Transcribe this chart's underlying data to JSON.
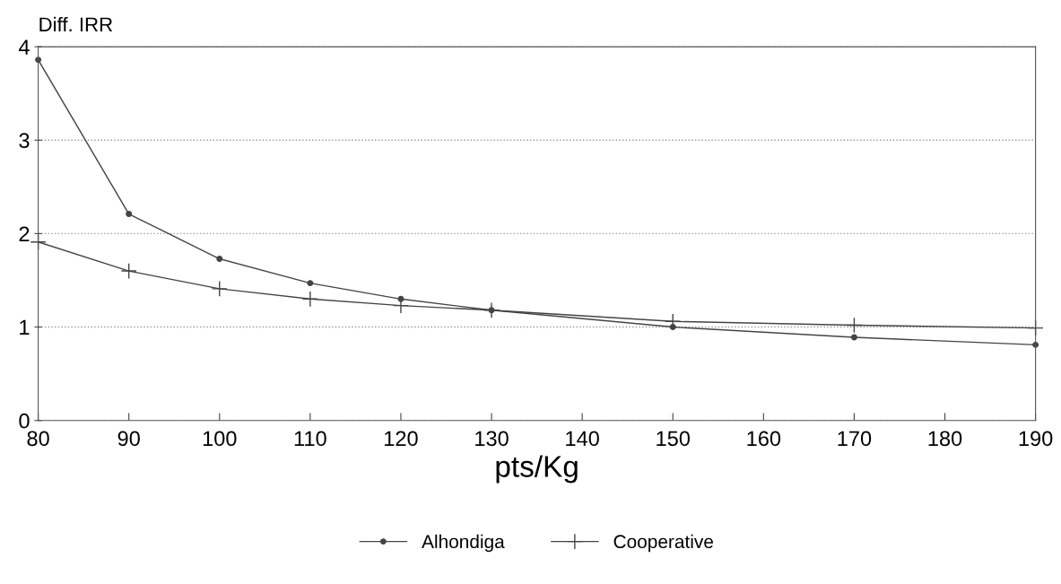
{
  "chart_data": {
    "type": "line",
    "ylabel": "Diff. IRR",
    "xlabel": "pts/Kg",
    "xlim": [
      80,
      190
    ],
    "xticks": [
      80,
      90,
      100,
      110,
      120,
      130,
      140,
      150,
      160,
      170,
      180,
      190
    ],
    "ylim": [
      0,
      4
    ],
    "yticks": [
      0,
      1,
      2,
      3,
      4
    ],
    "grid": "y",
    "legend": "bottom",
    "series": [
      {
        "name": "Alhondiga",
        "color": "#444444",
        "marker": "circle",
        "x": [
          80,
          90,
          100,
          110,
          120,
          130,
          150,
          170,
          190
        ],
        "values": [
          3.86,
          2.21,
          1.73,
          1.47,
          1.3,
          1.18,
          1.0,
          0.89,
          0.81
        ]
      },
      {
        "name": "Cooperative",
        "color": "#444444",
        "marker": "cross",
        "x": [
          80,
          90,
          100,
          110,
          120,
          130,
          150,
          170,
          190
        ],
        "values": [
          1.91,
          1.6,
          1.41,
          1.3,
          1.23,
          1.18,
          1.06,
          1.02,
          0.99
        ]
      }
    ]
  }
}
